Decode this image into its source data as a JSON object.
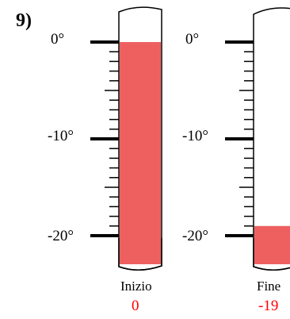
{
  "question_number": "9)",
  "thermometers": [
    {
      "labels": {
        "top": "0°",
        "mid": "-10°",
        "bottom": "-20°"
      },
      "caption": "Inizio",
      "value": "0",
      "fill_temperature": 0
    },
    {
      "labels": {
        "top": "0°",
        "mid": "-10°",
        "bottom": "-20°"
      },
      "caption": "Fine",
      "value": "-19",
      "fill_temperature": -19
    }
  ],
  "colors": {
    "liquid": "#ee6060",
    "value_text": "#ff0000",
    "outline": "#000000"
  }
}
